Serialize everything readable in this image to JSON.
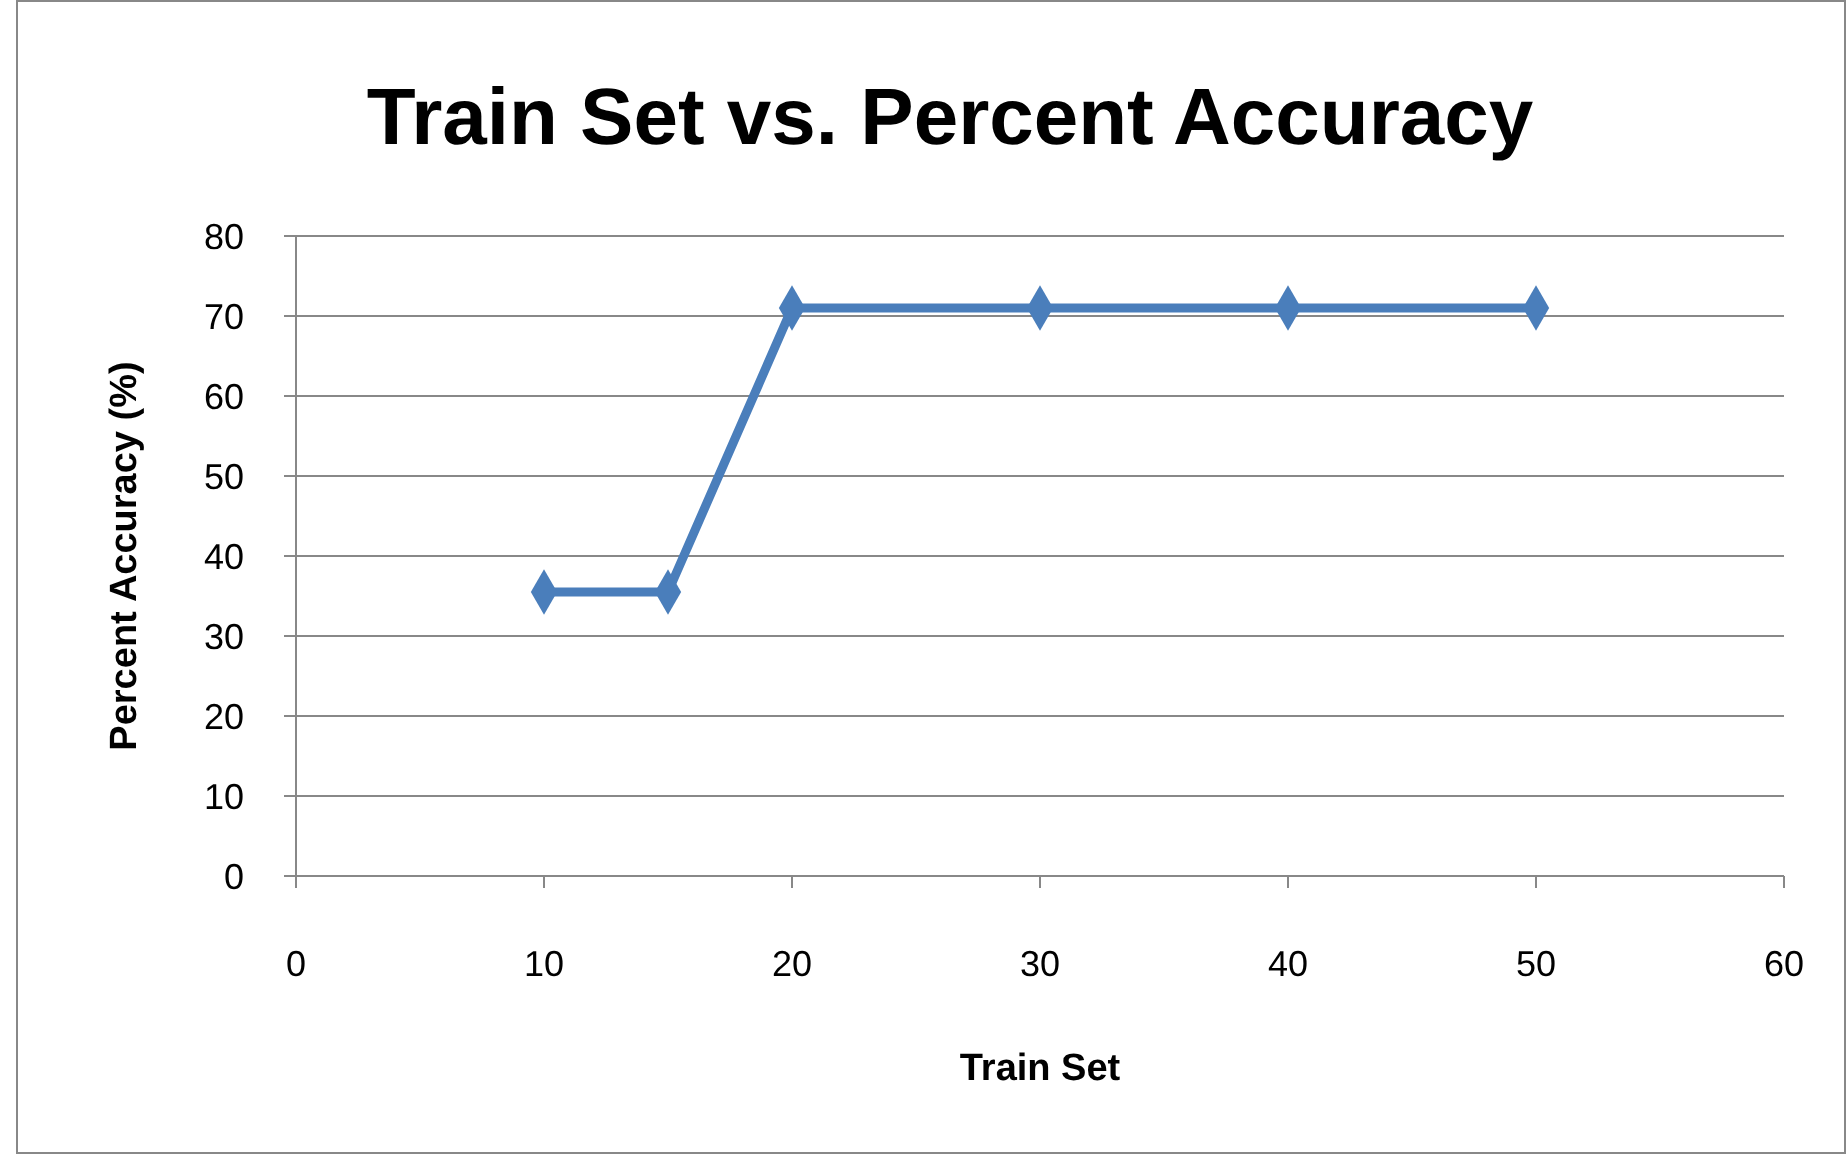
{
  "chart_data": {
    "type": "line",
    "title": "Train Set vs. Percent Accuracy",
    "xlabel": "Train Set",
    "ylabel": "Percent Accuracy (%)",
    "x": [
      10,
      15,
      20,
      30,
      40,
      50
    ],
    "series": [
      {
        "color": "#4a7ebb",
        "values": [
          35.5,
          35.5,
          71,
          71,
          71,
          71
        ]
      }
    ],
    "xlim": [
      0,
      60
    ],
    "xticks": [
      0,
      10,
      20,
      30,
      40,
      50,
      60
    ],
    "ylim": [
      0,
      80
    ],
    "yticks": [
      0,
      10,
      20,
      30,
      40,
      50,
      60,
      70,
      80
    ],
    "grid": "y",
    "marker": "diamond",
    "line_style": "solid"
  }
}
